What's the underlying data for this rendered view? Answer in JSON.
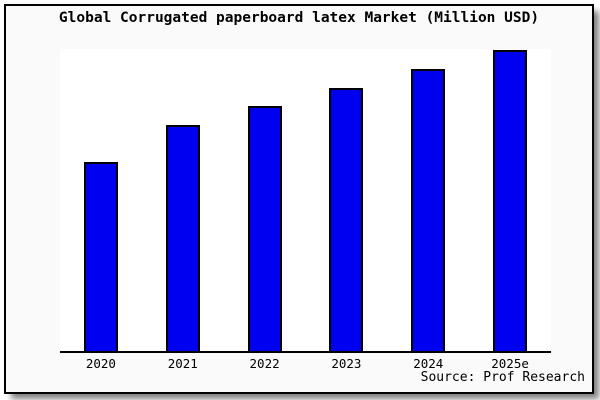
{
  "title": "Global Corrugated paperboard latex Market (Million USD)",
  "source": "Source: Prof Research",
  "colors": {
    "bar_fill": "#0000F0",
    "bar_border": "#000000",
    "figure_background": "#FAFAFA",
    "plot_background": "#FFFFFF",
    "axis": "#000000",
    "frame_border": "#000000",
    "text": "#000000"
  },
  "chart_data": {
    "type": "bar",
    "title": "Global Corrugated paperboard latex Market (Million USD)",
    "categories": [
      "2020",
      "2021",
      "2022",
      "2023",
      "2024",
      "2025e"
    ],
    "values": [
      62.8,
      75.1,
      81.4,
      87.4,
      93.7,
      100
    ],
    "value_basis": "relative units, tallest bar (2025e) = 100; chart displays no y-axis tick labels",
    "xlabel": "",
    "ylabel": "",
    "unit": "Million USD",
    "ylim": [
      0,
      100.3
    ],
    "grid": false,
    "legend": false,
    "y_axis_shown": false,
    "source_note": "Source: Prof Research"
  }
}
